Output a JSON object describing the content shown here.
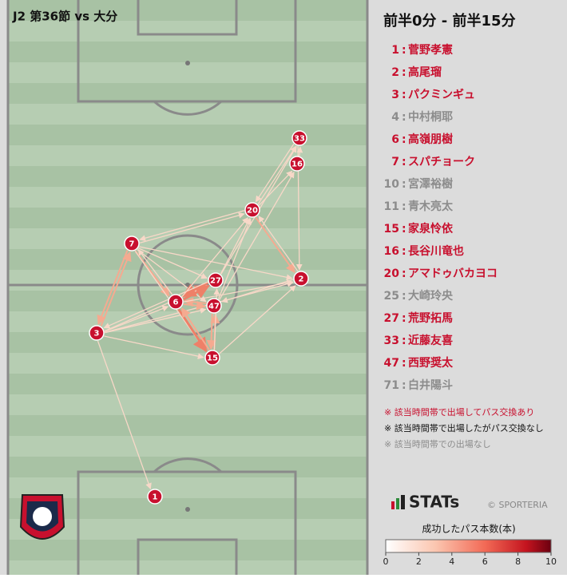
{
  "header": {
    "title": "J2 第36節 vs 大分",
    "period": "前半0分 - 前半15分"
  },
  "separator": ":",
  "players": [
    {
      "number": "1",
      "name": "菅野孝憲",
      "active": true
    },
    {
      "number": "2",
      "name": "高尾瑠",
      "active": true
    },
    {
      "number": "3",
      "name": "パクミンギュ",
      "active": true
    },
    {
      "number": "4",
      "name": "中村桐耶",
      "active": false
    },
    {
      "number": "6",
      "name": "高嶺朋樹",
      "active": true
    },
    {
      "number": "7",
      "name": "スパチョーク",
      "active": true
    },
    {
      "number": "10",
      "name": "宮澤裕樹",
      "active": false
    },
    {
      "number": "11",
      "name": "青木亮太",
      "active": false
    },
    {
      "number": "15",
      "name": "家泉怜依",
      "active": true
    },
    {
      "number": "16",
      "name": "長谷川竜也",
      "active": true
    },
    {
      "number": "20",
      "name": "アマドゥバカヨコ",
      "active": true
    },
    {
      "number": "25",
      "name": "大崎玲央",
      "active": false
    },
    {
      "number": "27",
      "name": "荒野拓馬",
      "active": true
    },
    {
      "number": "33",
      "name": "近藤友喜",
      "active": true
    },
    {
      "number": "47",
      "name": "西野奨太",
      "active": true
    },
    {
      "number": "71",
      "name": "白井陽斗",
      "active": false
    }
  ],
  "notes": [
    "※ 該当時間帯で出場してパス交換あり",
    "※ 該当時間帯で出場したがパス交換なし",
    "※ 該当時間帯での出場なし"
  ],
  "brand": {
    "logo": "STATs",
    "copyright": "© SPORTERIA"
  },
  "legend": {
    "title": "成功したパス本数(本)",
    "lim": [
      0,
      10
    ],
    "ticks": [
      0,
      2,
      4,
      6,
      8,
      10
    ]
  }
}
